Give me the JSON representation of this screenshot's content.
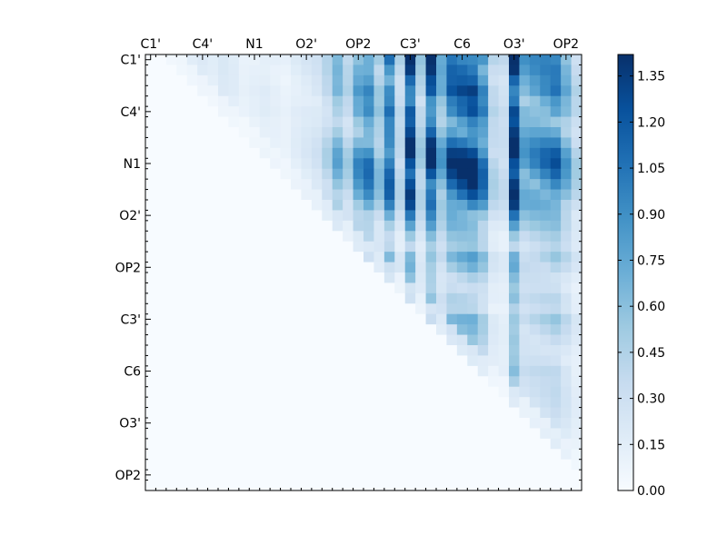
{
  "chart_data": {
    "type": "heatmap",
    "title": "",
    "xlabel": "",
    "ylabel": "",
    "n": 42,
    "x_tick_labels": [
      "C1'",
      "C4'",
      "N1",
      "O2'",
      "OP2",
      "C3'",
      "C6",
      "O3'",
      "OP2"
    ],
    "y_tick_labels": [
      "C1'",
      "C4'",
      "N1",
      "O2'",
      "OP2",
      "C3'",
      "C6",
      "O3'",
      "OP2"
    ],
    "x_tick_positions": [
      0,
      5,
      10,
      15,
      20,
      25,
      30,
      35,
      40
    ],
    "y_tick_positions": [
      0,
      5,
      10,
      15,
      20,
      25,
      30,
      35,
      40
    ],
    "colorbar": {
      "min": 0.0,
      "max": 1.42,
      "ticks": [
        0.0,
        0.15,
        0.3,
        0.45,
        0.6,
        0.75,
        0.9,
        1.05,
        1.2,
        1.35
      ],
      "tick_labels": [
        "0.00",
        "0.15",
        "0.30",
        "0.45",
        "0.60",
        "0.75",
        "0.90",
        "1.05",
        "1.20",
        "1.35"
      ],
      "colormap": [
        "#f7fbff",
        "#deebf7",
        "#c6dbef",
        "#9ecae1",
        "#6baed6",
        "#4292c6",
        "#2171b5",
        "#08519c",
        "#08306b"
      ]
    },
    "column_weights": [
      0.04,
      0.04,
      0.06,
      0.08,
      0.1,
      0.12,
      0.1,
      0.14,
      0.12,
      0.08,
      0.1,
      0.12,
      0.1,
      0.08,
      0.12,
      0.15,
      0.18,
      0.28,
      0.45,
      0.3,
      0.55,
      0.65,
      0.4,
      0.75,
      0.3,
      0.95,
      0.35,
      0.9,
      0.5,
      0.8,
      0.85,
      0.9,
      0.7,
      0.3,
      0.25,
      1.0,
      0.55,
      0.6,
      0.65,
      0.7,
      0.5,
      0.3
    ],
    "row_weights": [
      0.9,
      0.85,
      0.8,
      0.85,
      0.75,
      0.8,
      0.7,
      0.75,
      0.85,
      0.95,
      1.0,
      0.95,
      0.9,
      0.85,
      0.75,
      0.6,
      0.5,
      0.4,
      0.35,
      0.5,
      0.45,
      0.35,
      0.3,
      0.35,
      0.3,
      0.45,
      0.4,
      0.35,
      0.3,
      0.3,
      0.35,
      0.3,
      0.3,
      0.3,
      0.3,
      0.3,
      0.3,
      0.3,
      0.3,
      0.2,
      0.1,
      0.05
    ]
  }
}
